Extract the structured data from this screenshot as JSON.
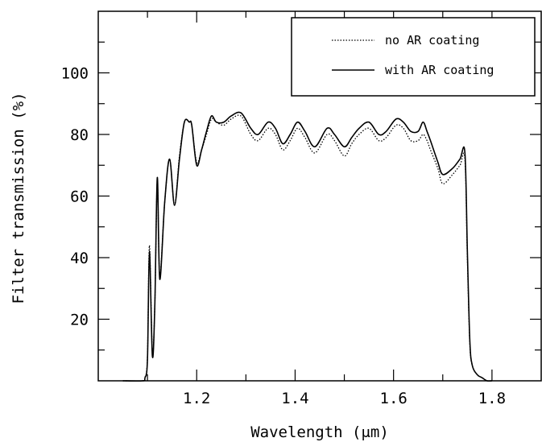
{
  "chart_data": {
    "type": "line",
    "title": "",
    "xlabel": "Wavelength (μm)",
    "ylabel": "Filter transmission (%)",
    "xlim": [
      1.0,
      1.9
    ],
    "ylim": [
      0,
      120
    ],
    "x_ticks": [
      "1.2",
      "1.4",
      "1.6",
      "1.8"
    ],
    "y_ticks": [
      "20",
      "40",
      "60",
      "80",
      "100"
    ],
    "x_tick_values": [
      1.2,
      1.4,
      1.6,
      1.8
    ],
    "y_tick_values": [
      20,
      40,
      60,
      80,
      100
    ],
    "grid": false,
    "legend_position": "top-right",
    "series": [
      {
        "name": "no AR coating",
        "style": "dotted",
        "color": "#000000",
        "x": [
          1.05,
          1.09,
          1.095,
          1.1,
          1.104,
          1.11,
          1.115,
          1.12,
          1.125,
          1.135,
          1.145,
          1.155,
          1.165,
          1.175,
          1.185,
          1.19,
          1.2,
          1.21,
          1.22,
          1.23,
          1.24,
          1.255,
          1.27,
          1.29,
          1.31,
          1.325,
          1.345,
          1.36,
          1.375,
          1.39,
          1.405,
          1.42,
          1.44,
          1.465,
          1.48,
          1.5,
          1.515,
          1.53,
          1.55,
          1.57,
          1.585,
          1.605,
          1.62,
          1.635,
          1.65,
          1.66,
          1.668,
          1.675,
          1.69,
          1.7,
          1.72,
          1.735,
          1.745,
          1.75,
          1.755,
          1.76,
          1.77,
          1.78,
          1.79,
          1.8
        ],
        "y": [
          0,
          0,
          1,
          8,
          44,
          9,
          25,
          65,
          34,
          58,
          72,
          57,
          73,
          84,
          84,
          83,
          71,
          75,
          80,
          85,
          84,
          83,
          85,
          86,
          80,
          78,
          82,
          80,
          75,
          78,
          82,
          79,
          74,
          80,
          78,
          73,
          77,
          80,
          82,
          78,
          79,
          83,
          82,
          78,
          78,
          80,
          78,
          75,
          69,
          64,
          67,
          70,
          72,
          40,
          12,
          5,
          2,
          1,
          0,
          0
        ]
      },
      {
        "name": "with AR coating",
        "style": "solid",
        "color": "#000000",
        "x": [
          1.05,
          1.09,
          1.095,
          1.1,
          1.104,
          1.11,
          1.115,
          1.12,
          1.125,
          1.135,
          1.145,
          1.155,
          1.165,
          1.175,
          1.185,
          1.19,
          1.2,
          1.21,
          1.22,
          1.23,
          1.24,
          1.255,
          1.27,
          1.29,
          1.31,
          1.325,
          1.345,
          1.36,
          1.375,
          1.39,
          1.405,
          1.42,
          1.44,
          1.465,
          1.48,
          1.5,
          1.515,
          1.53,
          1.55,
          1.57,
          1.585,
          1.605,
          1.62,
          1.635,
          1.65,
          1.66,
          1.668,
          1.675,
          1.69,
          1.7,
          1.72,
          1.735,
          1.745,
          1.75,
          1.755,
          1.76,
          1.77,
          1.78,
          1.79,
          1.8
        ],
        "y": [
          0,
          0,
          1,
          7,
          42,
          8,
          25,
          66,
          33,
          58,
          72,
          57,
          72,
          84,
          84,
          83,
          70,
          75,
          81,
          86,
          84,
          84,
          86,
          87,
          82,
          80,
          84,
          82,
          77,
          80,
          84,
          81,
          76,
          82,
          80,
          76,
          79,
          82,
          84,
          80,
          81,
          85,
          84,
          81,
          81,
          84,
          81,
          78,
          71,
          67,
          69,
          72,
          74,
          42,
          13,
          5,
          2,
          1,
          0,
          0
        ]
      }
    ]
  }
}
